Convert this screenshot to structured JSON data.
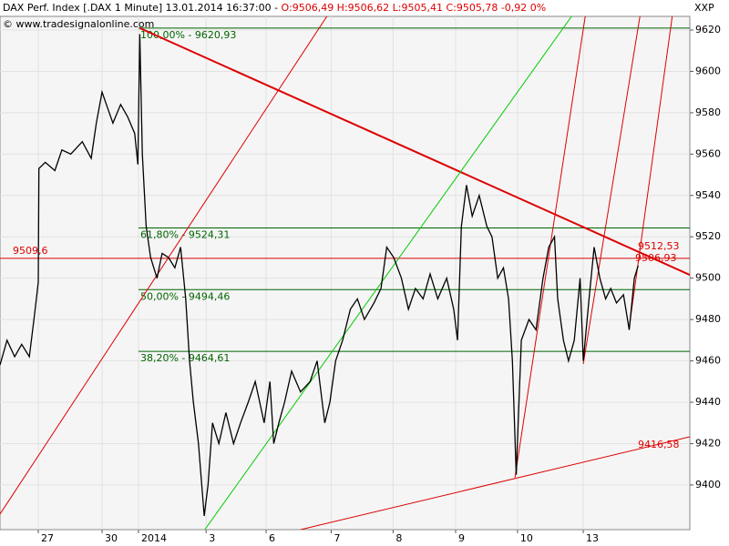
{
  "header": {
    "title": "DAX Perf. Index [.DAX  1 Minute] 13.01.2014 16:37:00 - ",
    "ohlc": "O:9506,49 H:9506,62 L:9505,41 C:9505,78 -0,92 0%",
    "copyright": "© www.tradesignalonline.com",
    "exchange": "XXP"
  },
  "chart_data": {
    "type": "line",
    "color": "#000000",
    "x": [
      -0.6,
      -0.49,
      -0.37,
      -0.26,
      -0.14,
      -0.06,
      0,
      0.01,
      0.11,
      0.26,
      0.37,
      0.51,
      0.69,
      0.83,
      0.91,
      1,
      1.09,
      1.17,
      1.29,
      1.4,
      1.51,
      1.56,
      1.59,
      1.63,
      1.69,
      1.76,
      1.86,
      1.94,
      2.04,
      2.14,
      2.23,
      2.31,
      2.37,
      2.43,
      2.51,
      2.6,
      2.66,
      2.73,
      2.83,
      2.94,
      3.06,
      3.17,
      3.29,
      3.4,
      3.54,
      3.63,
      3.69,
      3.77,
      3.86,
      3.97,
      4.11,
      4.26,
      4.37,
      4.49,
      4.57,
      4.66,
      4.77,
      4.89,
      5,
      5.11,
      5.26,
      5.37,
      5.46,
      5.57,
      5.69,
      5.8,
      5.91,
      6.03,
      6.14,
      6.26,
      6.4,
      6.51,
      6.57,
      6.63,
      6.71,
      6.8,
      6.91,
      7.03,
      7.11,
      7.2,
      7.29,
      7.37,
      7.43,
      7.49,
      7.57,
      7.69,
      7.8,
      7.91,
      8,
      8.09,
      8.14,
      8.23,
      8.31,
      8.4,
      8.49,
      8.54,
      8.63,
      8.71,
      8.8,
      8.89,
      8.97,
      9.06,
      9.17,
      9.26,
      9.34,
      9.4
    ],
    "values": [
      9458,
      9470,
      9462,
      9468,
      9462,
      9482,
      9498,
      9553,
      9556,
      9552,
      9562,
      9560,
      9566,
      9558,
      9575,
      9590,
      9582,
      9575,
      9584,
      9578,
      9570,
      9555,
      9618,
      9560,
      9525,
      9510,
      9500,
      9512,
      9510,
      9505,
      9515,
      9490,
      9460,
      9440,
      9420,
      9385,
      9400,
      9430,
      9420,
      9435,
      9420,
      9430,
      9440,
      9450,
      9430,
      9450,
      9420,
      9430,
      9440,
      9455,
      9445,
      9450,
      9460,
      9430,
      9440,
      9460,
      9470,
      9485,
      9490,
      9480,
      9488,
      9495,
      9515,
      9510,
      9500,
      9485,
      9495,
      9490,
      9502,
      9490,
      9500,
      9485,
      9470,
      9525,
      9545,
      9530,
      9540,
      9525,
      9520,
      9500,
      9505,
      9490,
      9460,
      9405,
      9470,
      9480,
      9475,
      9500,
      9515,
      9520,
      9490,
      9470,
      9460,
      9470,
      9500,
      9460,
      9490,
      9515,
      9500,
      9490,
      9495,
      9488,
      9492,
      9475,
      9500,
      9506
    ],
    "xlim": [
      -0.6,
      10.21
    ],
    "xticks": [
      {
        "value": 0,
        "label": "27"
      },
      {
        "value": 1,
        "label": "30"
      },
      {
        "value": 1.57,
        "label": "2014"
      },
      {
        "value": 2.63,
        "label": "3"
      },
      {
        "value": 3.57,
        "label": "6"
      },
      {
        "value": 4.59,
        "label": "7"
      },
      {
        "value": 5.56,
        "label": "8"
      },
      {
        "value": 6.54,
        "label": "9"
      },
      {
        "value": 7.51,
        "label": "10"
      },
      {
        "value": 8.54,
        "label": "13"
      }
    ],
    "ylim": [
      9378.4,
      9626.6
    ],
    "yticks": [
      9400,
      9420,
      9440,
      9460,
      9480,
      9500,
      9520,
      9540,
      9560,
      9580,
      9600,
      9620
    ],
    "grid": true,
    "fib_levels": {
      "color": "#006400",
      "start": 1.57,
      "levels": [
        {
          "value": 9620.93,
          "label": "100,00% - 9620,93"
        },
        {
          "value": 9524.31,
          "label": "61,80% - 9524,31"
        },
        {
          "value": 9494.46,
          "label": "50,00% - 9494,46"
        },
        {
          "value": 9464.61,
          "label": "38,20% - 9464,61"
        }
      ]
    },
    "hline": {
      "value": 9509.6,
      "label": "9509,6",
      "color": "#dd0000"
    },
    "trendlines": [
      {
        "color": "#dd0000",
        "width": 2,
        "x": [
          1.59,
          10.21
        ],
        "y": [
          9620.93,
          9501.6
        ]
      },
      {
        "color": "#dd0000",
        "width": 1,
        "x": [
          4.11,
          10.21
        ],
        "y": [
          9378.4,
          9423.3
        ]
      },
      {
        "color": "#dd0000",
        "width": 1,
        "x": [
          -0.6,
          4.69
        ],
        "y": [
          9385.9,
          9634.5
        ]
      },
      {
        "color": "#dd0000",
        "width": 1,
        "x": [
          7.47,
          8.61
        ],
        "y": [
          9403.5,
          9634.5
        ]
      },
      {
        "color": "#dd0000",
        "width": 1,
        "x": [
          8.54,
          9.47
        ],
        "y": [
          9458.5,
          9634.5
        ]
      },
      {
        "color": "#dd0000",
        "width": 1,
        "x": [
          9.26,
          9.97
        ],
        "y": [
          9476.1,
          9634.5
        ]
      },
      {
        "color": "#00cc00",
        "width": 1,
        "x": [
          2.61,
          8.54
        ],
        "y": [
          9378.4,
          9634.5
        ]
      }
    ],
    "annotations": {
      "color": "#dd0000",
      "items": [
        {
          "value": 9512.53,
          "label": "9512,53"
        },
        {
          "value": 9506.93,
          "label": "9506,93"
        },
        {
          "value": 9416.58,
          "label": "9416,58"
        }
      ]
    }
  }
}
